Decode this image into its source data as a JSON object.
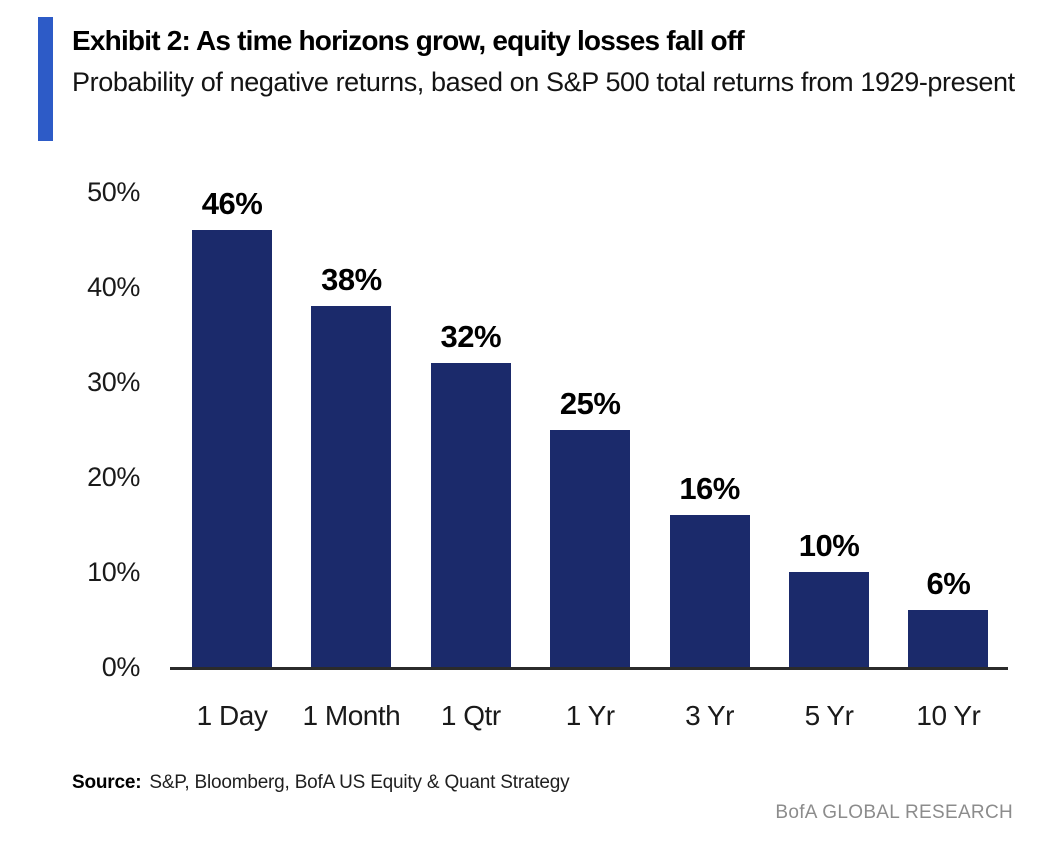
{
  "header": {
    "title": "Exhibit 2: As time horizons grow, equity losses fall off",
    "subtitle": "Probability of negative returns, based on S&P 500 total returns from 1929-present",
    "accent_color": "#2D5BC7"
  },
  "chart_data": {
    "type": "bar",
    "categories": [
      "1 Day",
      "1 Month",
      "1 Qtr",
      "1 Yr",
      "3 Yr",
      "5 Yr",
      "10 Yr"
    ],
    "values": [
      46,
      38,
      32,
      25,
      16,
      10,
      6
    ],
    "value_labels": [
      "46%",
      "38%",
      "32%",
      "25%",
      "16%",
      "10%",
      "6%"
    ],
    "y_ticks": [
      {
        "label": "50%",
        "value": 50
      },
      {
        "label": "40%",
        "value": 40
      },
      {
        "label": "30%",
        "value": 30
      },
      {
        "label": "20%",
        "value": 20
      },
      {
        "label": "10%",
        "value": 10
      },
      {
        "label": "0%",
        "value": 0
      }
    ],
    "ylim": [
      0,
      50
    ],
    "grid": false,
    "legend": "none",
    "bar_color": "#1B2A6B",
    "axis_line_color": "#2b2b2b",
    "title": "Exhibit 2: As time horizons grow, equity losses fall off",
    "xlabel": "",
    "ylabel": ""
  },
  "footer": {
    "source_label": "Source:",
    "source_text": "S&P, Bloomberg, BofA US Equity & Quant Strategy",
    "brand": "BofA GLOBAL RESEARCH"
  }
}
